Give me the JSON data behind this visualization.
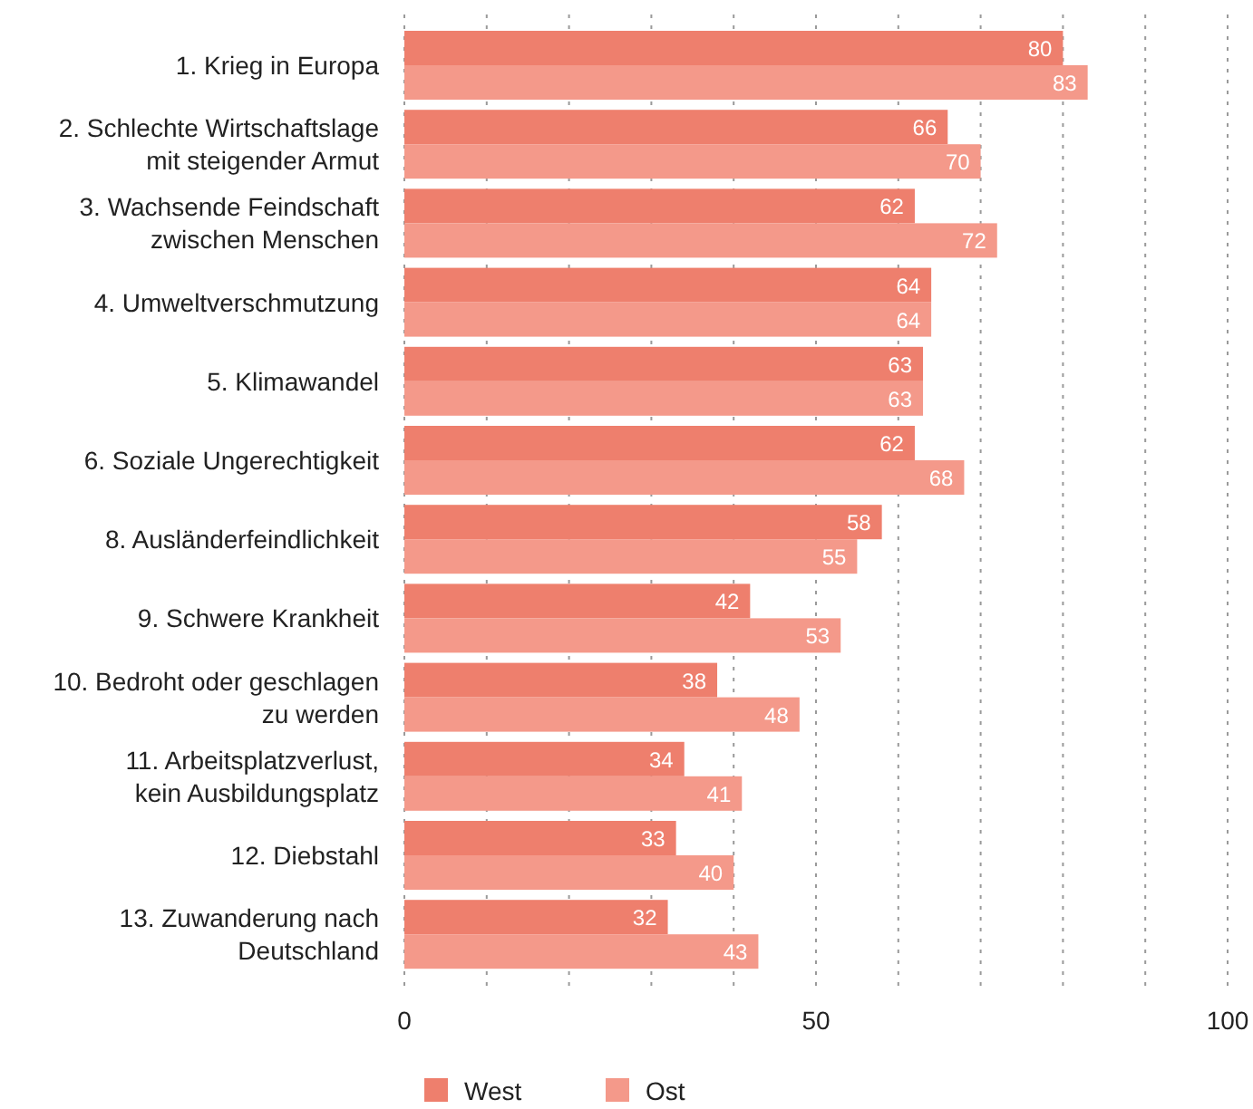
{
  "chart_data": {
    "type": "bar",
    "orientation": "horizontal",
    "categories": [
      "1. Krieg in Europa",
      "2. Schlechte Wirtschaftslage\nmit steigender Armut",
      "3. Wachsende Feindschaft\nzwischen Menschen",
      "4. Umweltverschmutzung",
      "5. Klimawandel",
      "6. Soziale Ungerechtigkeit",
      "8. Ausländerfeindlichkeit",
      "9. Schwere Krankheit",
      "10. Bedroht oder geschlagen\nzu werden",
      "11. Arbeitsplatzverlust,\nkein Ausbildungsplatz",
      "12. Diebstahl",
      "13. Zuwanderung nach\nDeutschland"
    ],
    "series": [
      {
        "name": "West",
        "color": "#ee7f6d",
        "values": [
          80,
          66,
          62,
          64,
          63,
          62,
          58,
          42,
          38,
          34,
          33,
          32
        ]
      },
      {
        "name": "Ost",
        "color": "#f4998a",
        "values": [
          83,
          70,
          72,
          64,
          63,
          68,
          55,
          53,
          48,
          41,
          40,
          43
        ]
      }
    ],
    "xlim": [
      0,
      100
    ],
    "xticks": [
      0,
      {
        "value": 10,
        "label": null
      },
      {
        "value": 20,
        "label": null
      },
      {
        "value": 30,
        "label": null
      },
      {
        "value": 40,
        "label": null
      },
      50,
      {
        "value": 60,
        "label": null
      },
      {
        "value": 70,
        "label": null
      },
      {
        "value": 80,
        "label": null
      },
      {
        "value": 90,
        "label": null
      },
      100
    ],
    "grid": "x",
    "legend": "bottom",
    "data_labels": true
  }
}
